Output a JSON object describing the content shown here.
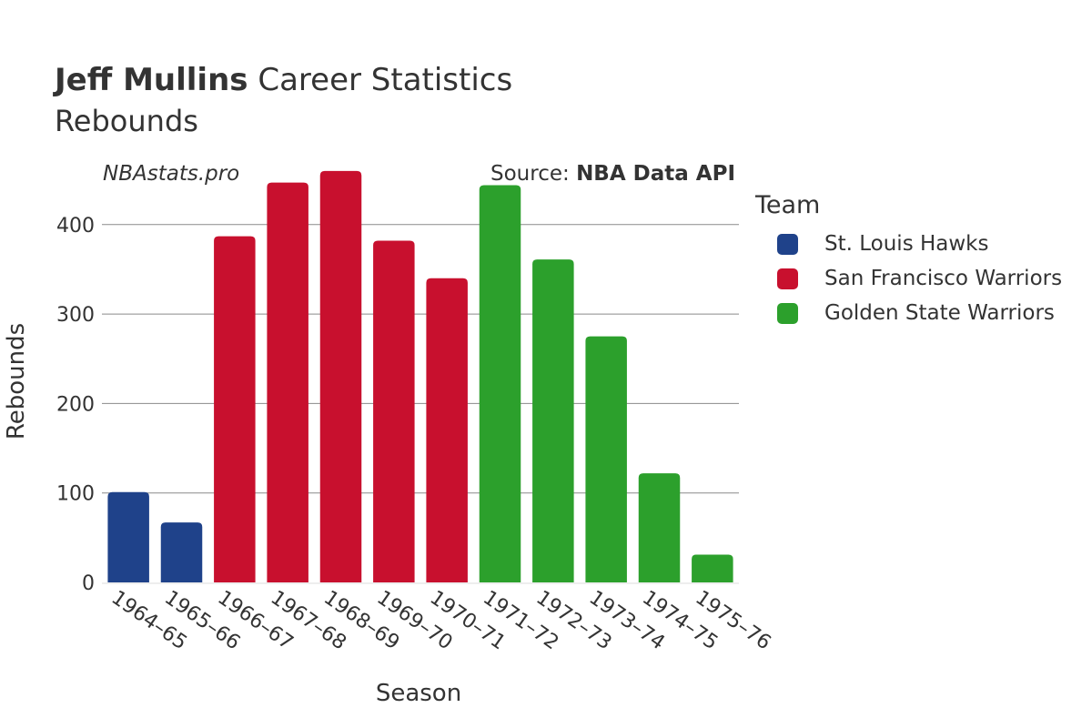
{
  "header": {
    "player": "Jeff Mullins",
    "title_rest": " Career Statistics",
    "subtitle": "Rebounds",
    "site": "NBAstats.pro",
    "source_prefix": "Source: ",
    "source_name": "NBA Data API"
  },
  "legend": {
    "title": "Team",
    "items": [
      {
        "label": "St. Louis Hawks",
        "color": "#1f428a"
      },
      {
        "label": "San Francisco Warriors",
        "color": "#c8102e"
      },
      {
        "label": "Golden State Warriors",
        "color": "#2ca02c"
      }
    ]
  },
  "chart_data": {
    "type": "bar",
    "xlabel": "Season",
    "ylabel": "Rebounds",
    "ylim": [
      0,
      460
    ],
    "yticks": [
      0,
      100,
      200,
      300,
      400
    ],
    "grid": true,
    "legend_position": "right",
    "categories": [
      "1964–65",
      "1965–66",
      "1966–67",
      "1967–68",
      "1968–69",
      "1969–70",
      "1970–71",
      "1971–72",
      "1972–73",
      "1973–74",
      "1974–75",
      "1975–76"
    ],
    "values": [
      101,
      67,
      387,
      447,
      460,
      382,
      340,
      444,
      361,
      275,
      122,
      31
    ],
    "teams": [
      "St. Louis Hawks",
      "St. Louis Hawks",
      "San Francisco Warriors",
      "San Francisco Warriors",
      "San Francisco Warriors",
      "San Francisco Warriors",
      "San Francisco Warriors",
      "Golden State Warriors",
      "Golden State Warriors",
      "Golden State Warriors",
      "Golden State Warriors",
      "Golden State Warriors"
    ]
  }
}
